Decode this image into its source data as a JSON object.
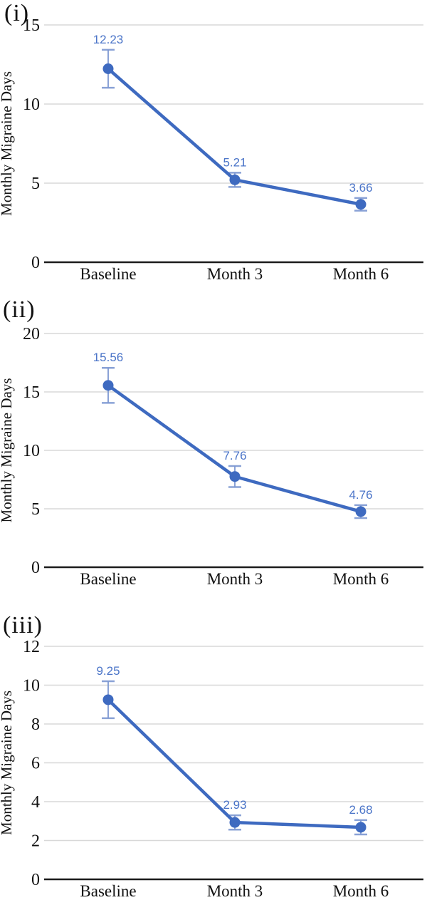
{
  "figure": {
    "description": "Three stacked line charts of monthly migraine days at Baseline, Month 3 and Month 6",
    "background_color": "#ffffff"
  },
  "colors": {
    "line": "#3e6ac0",
    "marker": "#3e6ac0",
    "error_bar": "#7e99d2",
    "data_label": "#4a74c8",
    "gridline": "#d8d8d8",
    "axis_line": "#1c1c1c",
    "axis_text": "#111111"
  },
  "chart_data": [
    {
      "type": "line",
      "panel_label": "(i)",
      "title": "",
      "xlabel": "",
      "ylabel": "Monthly Migraine Days",
      "categories": [
        "Baseline",
        "Month 3",
        "Month 6"
      ],
      "values": [
        12.23,
        5.21,
        3.66
      ],
      "data_labels": [
        "12.23",
        "5.21",
        "3.66"
      ],
      "error_plus_minus": [
        1.2,
        0.45,
        0.4
      ],
      "ylim": [
        0,
        15
      ],
      "yticks": [
        0,
        5,
        10,
        15
      ],
      "grid": true,
      "legend": "none",
      "marker": "circle"
    },
    {
      "type": "line",
      "panel_label": "(ii)",
      "title": "",
      "xlabel": "",
      "ylabel": "Monthly Migraine Days",
      "categories": [
        "Baseline",
        "Month 3",
        "Month 6"
      ],
      "values": [
        15.56,
        7.76,
        4.76
      ],
      "data_labels": [
        "15.56",
        "7.76",
        "4.76"
      ],
      "error_plus_minus": [
        1.5,
        0.9,
        0.55
      ],
      "ylim": [
        0,
        20
      ],
      "yticks": [
        0,
        5,
        10,
        15,
        20
      ],
      "grid": true,
      "legend": "none",
      "marker": "circle"
    },
    {
      "type": "line",
      "panel_label": "(iii)",
      "title": "",
      "xlabel": "",
      "ylabel": "Monthly Migraine Days",
      "categories": [
        "Baseline",
        "Month 3",
        "Month 6"
      ],
      "values": [
        9.25,
        2.93,
        2.68
      ],
      "data_labels": [
        "9.25",
        "2.93",
        "2.68"
      ],
      "error_plus_minus": [
        0.95,
        0.37,
        0.37
      ],
      "ylim": [
        0,
        12
      ],
      "yticks": [
        0,
        2,
        4,
        6,
        8,
        10,
        12
      ],
      "grid": true,
      "legend": "none",
      "marker": "circle"
    }
  ]
}
